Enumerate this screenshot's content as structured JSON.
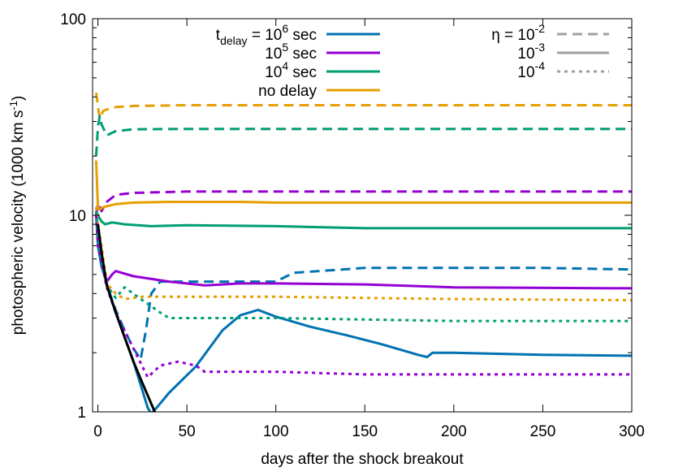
{
  "chart_data": {
    "type": "line",
    "xlabel": "days after the shock breakout",
    "ylabel": "photospheric velocity (1000 km s",
    "ylabel_sup": "-1",
    "ylabel_close": ")",
    "xlim": [
      -3,
      300
    ],
    "ylim": [
      1,
      100
    ],
    "yscale": "log",
    "x_ticks": [
      0,
      50,
      100,
      150,
      200,
      250,
      300
    ],
    "x_tick_labels": [
      "0",
      "50",
      "100",
      "150",
      "200",
      "250",
      "300"
    ],
    "y_ticks": [
      1,
      10,
      100
    ],
    "y_tick_labels": [
      "1",
      "10",
      "100"
    ],
    "grid": false,
    "legend_position": "top",
    "legend": {
      "delay": [
        {
          "id": "d6",
          "prefix": "t",
          "prefix_sub": "delay",
          "text": " = 10",
          "sup": "6",
          "suffix": " sec",
          "color": "#0072b2"
        },
        {
          "id": "d5",
          "prefix": "",
          "prefix_sub": "",
          "text": "10",
          "sup": "5",
          "suffix": " sec",
          "color": "#9400d3"
        },
        {
          "id": "d4",
          "prefix": "",
          "prefix_sub": "",
          "text": "10",
          "sup": "4",
          "suffix": " sec",
          "color": "#009e73"
        },
        {
          "id": "d0",
          "prefix": "",
          "prefix_sub": "",
          "text": "no delay",
          "sup": "",
          "suffix": "",
          "color": "#e69f00"
        }
      ],
      "eta": [
        {
          "id": "e2",
          "prefix": "η = 10",
          "sup": "-2",
          "dash": "dashed"
        },
        {
          "id": "e3",
          "prefix": "10",
          "sup": "-3",
          "dash": "solid"
        },
        {
          "id": "e4",
          "prefix": "10",
          "sup": "-4",
          "dash": "dotted"
        }
      ],
      "eta_color": "#a0a0a0"
    },
    "series": [
      {
        "delay": "d0",
        "eta": "e2",
        "color": "#e69f00",
        "dash": "dashed",
        "x": [
          -1,
          0,
          1,
          3,
          5,
          10,
          20,
          50,
          100,
          200,
          300
        ],
        "y": [
          42,
          36,
          31,
          34,
          34.5,
          35.5,
          36,
          36.3,
          36.3,
          36.3,
          36.3
        ]
      },
      {
        "delay": "d4",
        "eta": "e2",
        "color": "#009e73",
        "dash": "dashed",
        "x": [
          -1,
          0,
          1,
          2,
          5,
          10,
          20,
          50,
          100,
          200,
          300
        ],
        "y": [
          20,
          28,
          32,
          29,
          25.5,
          26.8,
          27.4,
          27.5,
          27.5,
          27.5,
          27.5
        ]
      },
      {
        "delay": "d5",
        "eta": "e2",
        "color": "#9400d3",
        "dash": "dashed",
        "x": [
          -1,
          0,
          2,
          5,
          10,
          20,
          50,
          100,
          200,
          300
        ],
        "y": [
          10,
          11.5,
          10.5,
          11.7,
          12.7,
          13.0,
          13.2,
          13.2,
          13.2,
          13.2
        ]
      },
      {
        "delay": "d6",
        "eta": "e2",
        "color": "#0072b2",
        "dash": "dashed",
        "x": [
          -1,
          0,
          5,
          10,
          15,
          20,
          24,
          27,
          30,
          35,
          50,
          100,
          110,
          150,
          200,
          250,
          300
        ],
        "y": [
          10,
          8,
          4.4,
          3.3,
          2.6,
          2.1,
          1.85,
          2.6,
          4.0,
          4.6,
          4.6,
          4.6,
          5.1,
          5.4,
          5.4,
          5.4,
          5.3
        ]
      },
      {
        "delay": "d0",
        "eta": "e3",
        "color": "#e69f00",
        "dash": "solid",
        "x": [
          -1,
          0,
          1,
          3,
          10,
          20,
          40,
          80,
          100,
          150,
          200,
          300
        ],
        "y": [
          19,
          11,
          10.7,
          11.0,
          11.4,
          11.6,
          11.7,
          11.7,
          11.6,
          11.6,
          11.6,
          11.6
        ]
      },
      {
        "delay": "d4",
        "eta": "e3",
        "color": "#009e73",
        "dash": "solid",
        "x": [
          -1,
          0,
          2,
          4,
          8,
          15,
          30,
          50,
          100,
          150,
          200,
          300
        ],
        "y": [
          10.5,
          10,
          9.3,
          9.0,
          9.2,
          9.0,
          8.8,
          8.9,
          8.8,
          8.6,
          8.6,
          8.6
        ]
      },
      {
        "delay": "d5",
        "eta": "e3",
        "color": "#9400d3",
        "dash": "solid",
        "x": [
          -1,
          0,
          3,
          5,
          8,
          10,
          20,
          40,
          60,
          80,
          100,
          150,
          200,
          300
        ],
        "y": [
          10.5,
          8,
          5.3,
          4.6,
          5.0,
          5.2,
          4.9,
          4.6,
          4.4,
          4.5,
          4.5,
          4.45,
          4.3,
          4.25
        ]
      },
      {
        "delay": "d6",
        "eta": "e3",
        "color": "#0072b2",
        "dash": "solid",
        "x": [
          -1,
          0,
          2,
          5,
          10,
          20,
          28,
          30,
          33,
          40,
          55,
          70,
          80,
          90,
          100,
          120,
          140,
          160,
          180,
          185,
          188,
          200,
          250,
          300
        ],
        "y": [
          10,
          7,
          5.5,
          4.5,
          3.2,
          1.8,
          1.05,
          0.98,
          1.05,
          1.25,
          1.7,
          2.6,
          3.1,
          3.3,
          3.05,
          2.7,
          2.45,
          2.2,
          1.95,
          1.9,
          2.0,
          2.0,
          1.95,
          1.93
        ]
      },
      {
        "delay": "d0",
        "eta": "e4",
        "color": "#e69f00",
        "dash": "dotted",
        "x": [
          -1,
          0,
          2,
          5,
          10,
          15,
          25,
          50,
          100,
          200,
          300
        ],
        "y": [
          11,
          9,
          7,
          4.5,
          4.0,
          3.75,
          3.85,
          3.85,
          3.85,
          3.75,
          3.7
        ]
      },
      {
        "delay": "d4",
        "eta": "e4",
        "color": "#009e73",
        "dash": "dotted",
        "x": [
          -1,
          0,
          2,
          5,
          10,
          15,
          25,
          35,
          40,
          100,
          200,
          300
        ],
        "y": [
          10.5,
          8,
          6,
          4.4,
          3.8,
          4.3,
          3.7,
          3.2,
          3.0,
          3.0,
          2.9,
          2.9
        ]
      },
      {
        "delay": "d5",
        "eta": "e4",
        "color": "#9400d3",
        "dash": "dotted",
        "x": [
          -1,
          0,
          5,
          10,
          20,
          28,
          35,
          45,
          55,
          60,
          100,
          150,
          200,
          300
        ],
        "y": [
          10,
          7,
          4.3,
          3.2,
          2.1,
          1.5,
          1.72,
          1.8,
          1.72,
          1.6,
          1.6,
          1.55,
          1.55,
          1.55
        ]
      },
      {
        "delay": "none",
        "eta": "none",
        "color": "#000000",
        "dash": "solid",
        "x": [
          0,
          2,
          5,
          10,
          15,
          20,
          25,
          30,
          33
        ],
        "y": [
          9,
          6.5,
          4.4,
          3.2,
          2.4,
          1.8,
          1.4,
          1.1,
          0.95
        ]
      }
    ]
  }
}
